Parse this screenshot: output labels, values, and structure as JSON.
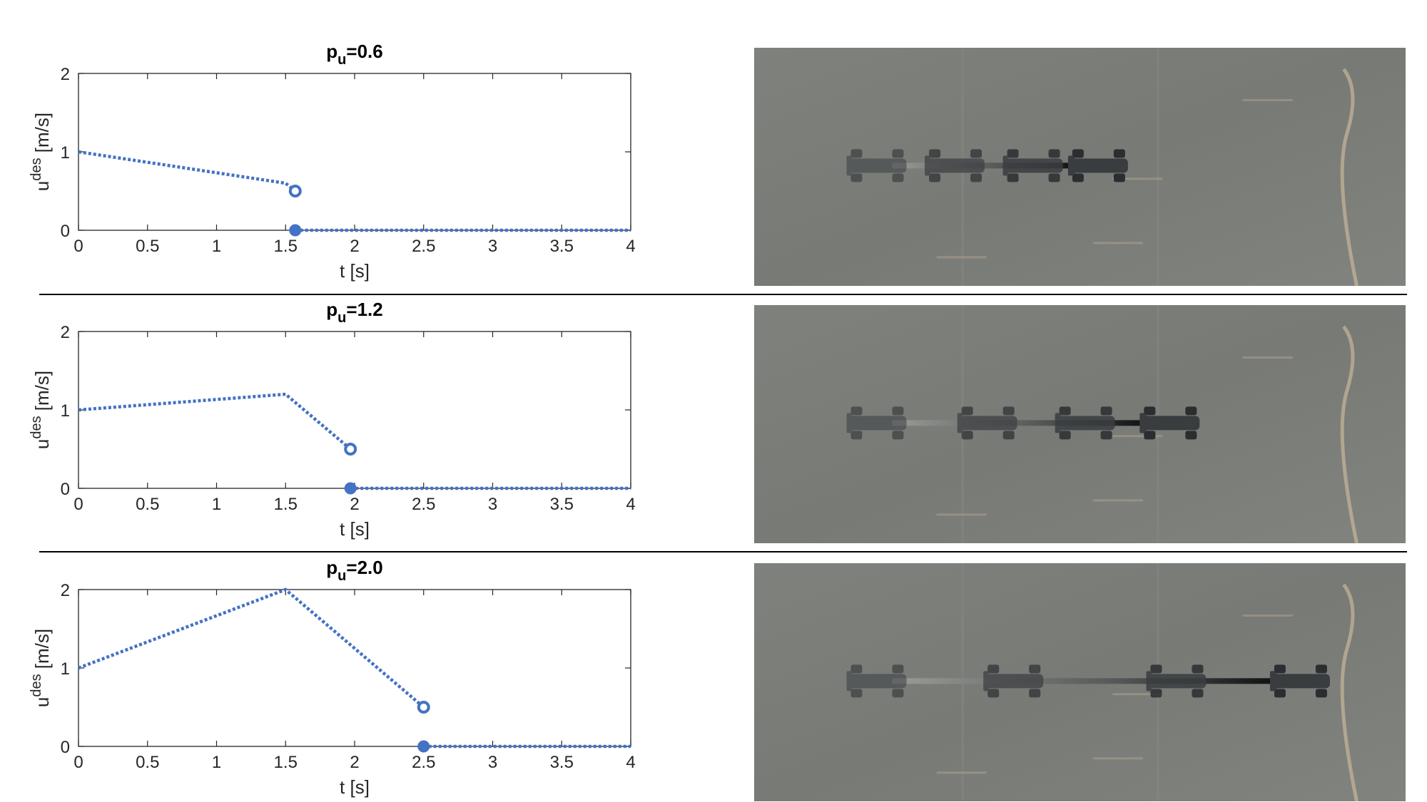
{
  "figure": {
    "series_color": "#4472C4",
    "photo_colors": {
      "ground": "#7d7f7b",
      "ground_dark": "#6f716d",
      "vehicle": "#3a3d40",
      "arrow": "#111111",
      "markings": "#c9b79a"
    }
  },
  "chart_data": [
    {
      "type": "line",
      "title": "p_u=0.6",
      "title_parts": {
        "base": "p",
        "sub": "u",
        "rest": "=0.6"
      },
      "xlabel": "t [s]",
      "ylabel_parts": {
        "base": "u",
        "sup": "des",
        "rest": " [m/s]"
      },
      "xlim": [
        0,
        4
      ],
      "ylim": [
        0,
        2
      ],
      "xticks": [
        "0",
        "0.5",
        "1",
        "1.5",
        "2",
        "2.5",
        "3",
        "3.5",
        "4"
      ],
      "yticks": [
        "0",
        "1",
        "2"
      ],
      "grid": false,
      "series": [
        {
          "x": [
            0,
            1.5,
            1.57
          ],
          "y": [
            1.0,
            0.6,
            0.5
          ],
          "style": "dotted"
        },
        {
          "x": [
            1.57,
            4.0
          ],
          "y": [
            0,
            0
          ],
          "style": "dotted"
        }
      ],
      "open_marker": {
        "x": 1.57,
        "y": 0.5
      },
      "filled_marker": {
        "x": 1.57,
        "y": 0
      },
      "photo": {
        "vehicle_positions": [
          0.19,
          0.31,
          0.43,
          0.53
        ],
        "arrow_end": 0.49
      }
    },
    {
      "type": "line",
      "title": "p_u=1.2",
      "title_parts": {
        "base": "p",
        "sub": "u",
        "rest": "=1.2"
      },
      "xlabel": "t [s]",
      "ylabel_parts": {
        "base": "u",
        "sup": "des",
        "rest": " [m/s]"
      },
      "xlim": [
        0,
        4
      ],
      "ylim": [
        0,
        2
      ],
      "xticks": [
        "0",
        "0.5",
        "1",
        "1.5",
        "2",
        "2.5",
        "3",
        "3.5",
        "4"
      ],
      "yticks": [
        "0",
        "1",
        "2"
      ],
      "grid": false,
      "series": [
        {
          "x": [
            0,
            1.5,
            1.97
          ],
          "y": [
            1.0,
            1.2,
            0.5
          ],
          "style": "dotted"
        },
        {
          "x": [
            1.97,
            4.0
          ],
          "y": [
            0,
            0
          ],
          "style": "dotted"
        }
      ],
      "open_marker": {
        "x": 1.97,
        "y": 0.5
      },
      "filled_marker": {
        "x": 1.97,
        "y": 0
      },
      "photo": {
        "vehicle_positions": [
          0.19,
          0.36,
          0.51,
          0.64
        ],
        "arrow_end": 0.6
      }
    },
    {
      "type": "line",
      "title": "p_u=2.0",
      "title_parts": {
        "base": "p",
        "sub": "u",
        "rest": "=2.0"
      },
      "xlabel": "t [s]",
      "ylabel_parts": {
        "base": "u",
        "sup": "des",
        "rest": " [m/s]"
      },
      "xlim": [
        0,
        4
      ],
      "ylim": [
        0,
        2
      ],
      "xticks": [
        "0",
        "0.5",
        "1",
        "1.5",
        "2",
        "2.5",
        "3",
        "3.5",
        "4"
      ],
      "yticks": [
        "0",
        "1",
        "2"
      ],
      "grid": false,
      "series": [
        {
          "x": [
            0,
            1.5,
            2.5
          ],
          "y": [
            1.0,
            2.0,
            0.5
          ],
          "style": "dotted"
        },
        {
          "x": [
            2.5,
            4.0
          ],
          "y": [
            0,
            0
          ],
          "style": "dotted"
        }
      ],
      "open_marker": {
        "x": 2.5,
        "y": 0.5
      },
      "filled_marker": {
        "x": 2.5,
        "y": 0
      },
      "photo": {
        "vehicle_positions": [
          0.19,
          0.4,
          0.65,
          0.84
        ],
        "arrow_end": 0.8
      }
    }
  ]
}
